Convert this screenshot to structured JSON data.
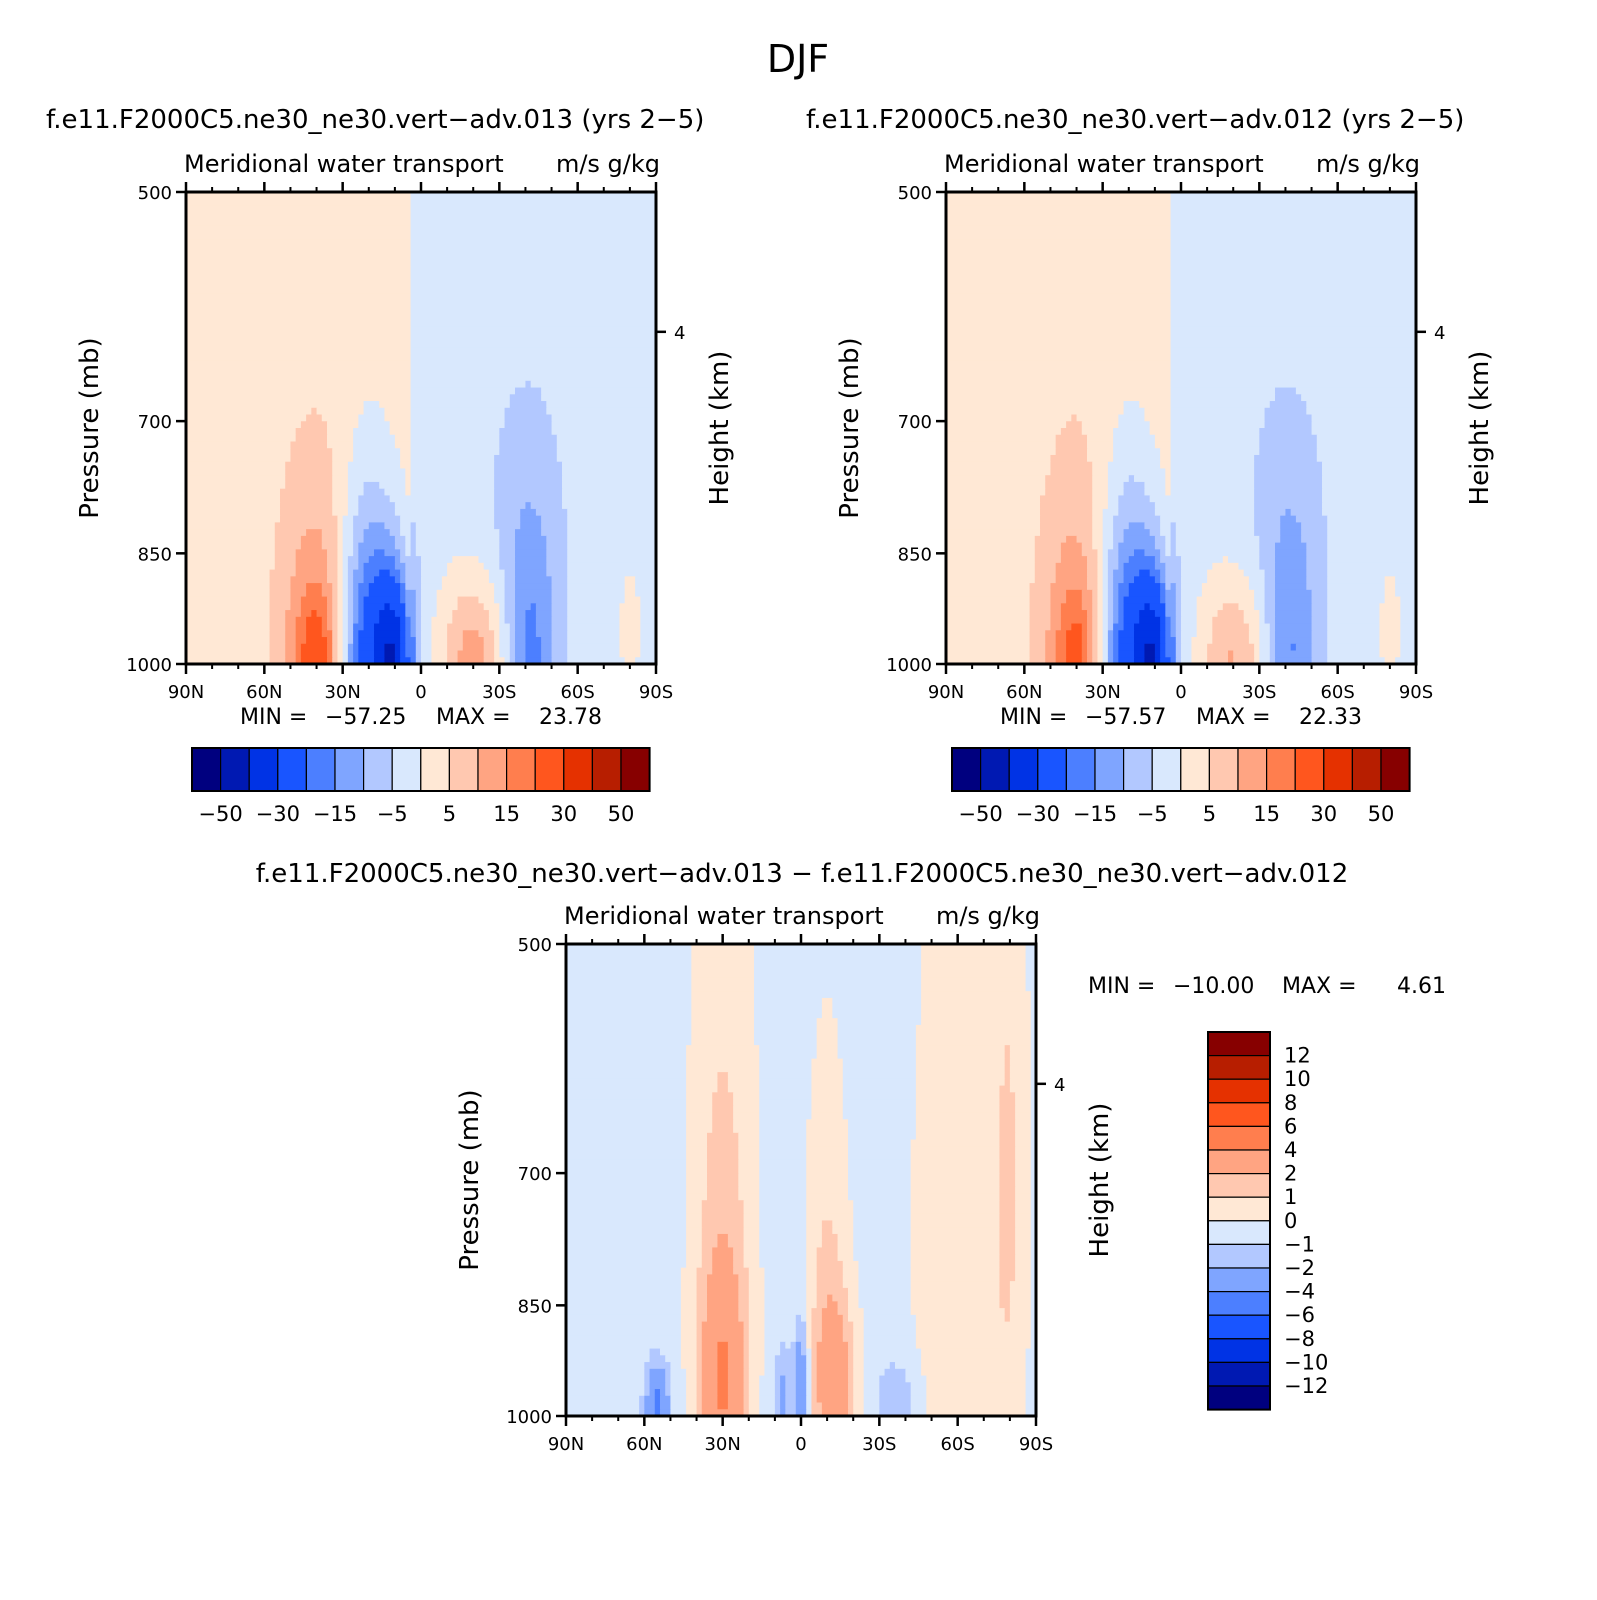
{
  "figure": {
    "title": "DJF"
  },
  "colors": {
    "main": [
      "#00007f",
      "#0019b2",
      "#0033e5",
      "#1955ff",
      "#4c7fff",
      "#7fa5ff",
      "#b2c8ff",
      "#d9e8fd",
      "#ffe8d5",
      "#ffc8b0",
      "#ffa482",
      "#ff7e4e",
      "#ff561e",
      "#e53100",
      "#b71e00",
      "#870000"
    ],
    "diff": [
      "#00007f",
      "#0019b2",
      "#0033e5",
      "#1955ff",
      "#4c7fff",
      "#7fa5ff",
      "#b2c8ff",
      "#d9e8fd",
      "#ffe8d5",
      "#ffc8b0",
      "#ffa482",
      "#ff7e4e",
      "#ff561e",
      "#e53100",
      "#b71e00",
      "#870000"
    ]
  },
  "chart_data": [
    {
      "type": "heatmap",
      "id": "case1",
      "title": "f.e11.F2000C5.ne30_ne30.vert−adv.013 (yrs 2−5)",
      "subtitle": "Meridional water transport",
      "units": "m/s g/kg",
      "ylabel": "Pressure (mb)",
      "ylabel_right": "Height (km)",
      "x_ticks": [
        "90N",
        "60N",
        "30N",
        "0",
        "30S",
        "60S",
        "90S"
      ],
      "y_ticks": [
        "500",
        "700",
        "850",
        "1000"
      ],
      "y_right_ticks": [
        "4"
      ],
      "xlim": [
        90,
        -90
      ],
      "ylim": [
        500,
        1000
      ],
      "y_scale": "log",
      "min_label": "MIN =",
      "min_value": "−57.25",
      "max_label": "MAX =",
      "max_value": "23.78",
      "levels": [
        -50,
        -40,
        -30,
        -20,
        -15,
        -10,
        -5,
        0,
        5,
        10,
        15,
        20,
        30,
        40,
        50
      ],
      "colorbar_labels": [
        "−50",
        "−30",
        "−15",
        "−5",
        "5",
        "15",
        "30",
        "50"
      ],
      "features": [
        {
          "lat": 20,
          "p": 1000,
          "sx": 8,
          "sp": 150,
          "amp": -28
        },
        {
          "lat": 10,
          "p": 1000,
          "sx": 5,
          "sp": 90,
          "amp": -30
        },
        {
          "lat": 40,
          "p": 1000,
          "sx": 10,
          "sp": 170,
          "amp": 14
        },
        {
          "lat": 40,
          "p": 990,
          "sx": 5,
          "sp": 60,
          "amp": 10
        },
        {
          "lat": -20,
          "p": 990,
          "sx": 9,
          "sp": 80,
          "amp": 15
        },
        {
          "lat": -42,
          "p": 1000,
          "sx": 7,
          "sp": 130,
          "amp": -13
        },
        {
          "lat": -40,
          "p": 800,
          "sx": 12,
          "sp": 120,
          "amp": -4
        },
        {
          "lat": -80,
          "p": 950,
          "sx": 6,
          "sp": 120,
          "amp": 3
        }
      ],
      "background": {
        "north": 2.5,
        "south": -2.5,
        "boundary_lat": 4
      }
    },
    {
      "type": "heatmap",
      "id": "case2",
      "title": "f.e11.F2000C5.ne30_ne30.vert−adv.012 (yrs 2−5)",
      "subtitle": "Meridional water transport",
      "units": "m/s g/kg",
      "ylabel": "Pressure (mb)",
      "ylabel_right": "Height (km)",
      "x_ticks": [
        "90N",
        "60N",
        "30N",
        "0",
        "30S",
        "60S",
        "90S"
      ],
      "y_ticks": [
        "500",
        "700",
        "850",
        "1000"
      ],
      "y_right_ticks": [
        "4"
      ],
      "xlim": [
        90,
        -90
      ],
      "ylim": [
        500,
        1000
      ],
      "y_scale": "log",
      "min_label": "MIN =",
      "min_value": "−57.57",
      "max_label": "MAX =",
      "max_value": "22.33",
      "levels": [
        -50,
        -40,
        -30,
        -20,
        -15,
        -10,
        -5,
        0,
        5,
        10,
        15,
        20,
        30,
        40,
        50
      ],
      "colorbar_labels": [
        "−50",
        "−30",
        "−15",
        "−5",
        "5",
        "15",
        "30",
        "50"
      ],
      "features": [
        {
          "lat": 20,
          "p": 1000,
          "sx": 8,
          "sp": 150,
          "amp": -28
        },
        {
          "lat": 10,
          "p": 1000,
          "sx": 5,
          "sp": 90,
          "amp": -30
        },
        {
          "lat": 40,
          "p": 1000,
          "sx": 10,
          "sp": 170,
          "amp": 13
        },
        {
          "lat": 40,
          "p": 990,
          "sx": 5,
          "sp": 60,
          "amp": 9
        },
        {
          "lat": -20,
          "p": 990,
          "sx": 9,
          "sp": 80,
          "amp": 13
        },
        {
          "lat": -42,
          "p": 1000,
          "sx": 7,
          "sp": 130,
          "amp": -12
        },
        {
          "lat": -40,
          "p": 800,
          "sx": 12,
          "sp": 120,
          "amp": -4
        },
        {
          "lat": -80,
          "p": 950,
          "sx": 6,
          "sp": 120,
          "amp": 3
        }
      ],
      "background": {
        "north": 2.5,
        "south": -2.5,
        "boundary_lat": 4
      }
    },
    {
      "type": "heatmap",
      "id": "diff",
      "title": "f.e11.F2000C5.ne30_ne30.vert−adv.013 − f.e11.F2000C5.ne30_ne30.vert−adv.012",
      "subtitle": "Meridional water transport",
      "units": "m/s g/kg",
      "ylabel": "Pressure (mb)",
      "ylabel_right": "Height (km)",
      "x_ticks": [
        "90N",
        "60N",
        "30N",
        "0",
        "30S",
        "60S",
        "90S"
      ],
      "y_ticks": [
        "500",
        "700",
        "850",
        "1000"
      ],
      "y_right_ticks": [
        "4"
      ],
      "xlim": [
        90,
        -90
      ],
      "ylim": [
        500,
        1000
      ],
      "y_scale": "log",
      "min_label": "MIN =",
      "min_value": "−10.00",
      "max_label": "MAX =",
      "max_value": "4.61",
      "levels": [
        -12,
        -10,
        -8,
        -6,
        -4,
        -2,
        -1,
        0,
        1,
        2,
        4,
        6,
        8,
        10,
        12
      ],
      "colorbar_labels": [
        "12",
        "10",
        "8",
        "6",
        "4",
        "2",
        "1",
        "0",
        "−1",
        "−2",
        "−4",
        "−6",
        "−8",
        "−10",
        "−12"
      ],
      "features": [
        {
          "lat": 30,
          "p": 960,
          "sx": 6,
          "sp": 110,
          "amp": 3.5
        },
        {
          "lat": -13,
          "p": 960,
          "sx": 6,
          "sp": 90,
          "amp": 3.0
        },
        {
          "lat": 0,
          "p": 970,
          "sx": 2,
          "sp": 70,
          "amp": -3.5
        },
        {
          "lat": 7,
          "p": 975,
          "sx": 2,
          "sp": 50,
          "amp": -2
        },
        {
          "lat": 55,
          "p": 985,
          "sx": 3,
          "sp": 40,
          "amp": -4
        },
        {
          "lat": 30,
          "p": 760,
          "sx": 9,
          "sp": 260,
          "amp": 1.8
        },
        {
          "lat": -10,
          "p": 800,
          "sx": 6,
          "sp": 180,
          "amp": 1.4
        },
        {
          "lat": -60,
          "p": 800,
          "sx": 12,
          "sp": 300,
          "amp": 1.5
        },
        {
          "lat": -80,
          "p": 700,
          "sx": 5,
          "sp": 300,
          "amp": 1.3
        },
        {
          "lat": -37,
          "p": 990,
          "sx": 6,
          "sp": 50,
          "amp": -1.5
        }
      ],
      "background": {
        "north": -0.5,
        "south": -0.5,
        "boundary_lat": 0
      }
    }
  ]
}
